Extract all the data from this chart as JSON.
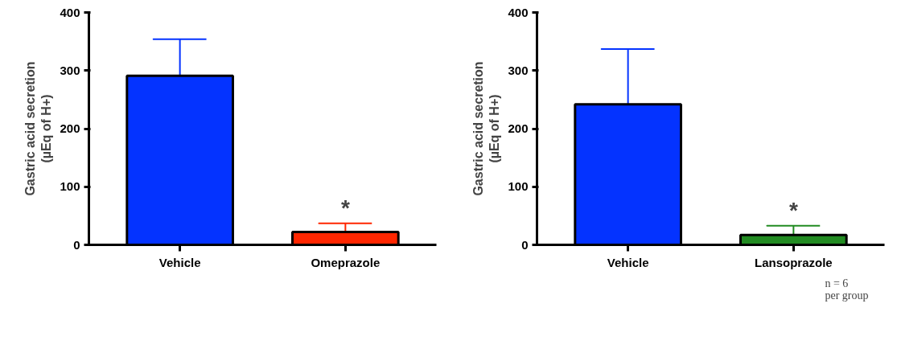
{
  "chart_data": [
    {
      "type": "bar",
      "ylabel": "Gastric acid secretion\n(µEq of H+)",
      "categories": [
        "Vehicle",
        "Omeprazole"
      ],
      "values": [
        291,
        22
      ],
      "colors": [
        "#0433ff",
        "#ff2600"
      ],
      "errors": [
        [
          291,
          354
        ],
        [
          22,
          37
        ]
      ],
      "ylim": [
        0,
        400
      ],
      "yticks": [
        0,
        100,
        200,
        300,
        400
      ],
      "grid": false,
      "annotations": [
        "*"
      ]
    },
    {
      "type": "bar",
      "ylabel": "Gastric acid secretion\n(µEq of H+)",
      "categories": [
        "Vehicle",
        "Lansoprazole"
      ],
      "values": [
        242,
        17
      ],
      "colors": [
        "#0433ff",
        "#228b22"
      ],
      "errors": [
        [
          242,
          337
        ],
        [
          17,
          33
        ]
      ],
      "ylim": [
        0,
        400
      ],
      "yticks": [
        0,
        100,
        200,
        300,
        400
      ],
      "grid": false,
      "annotations": [
        "*",
        "n = 6\nper group"
      ]
    }
  ]
}
